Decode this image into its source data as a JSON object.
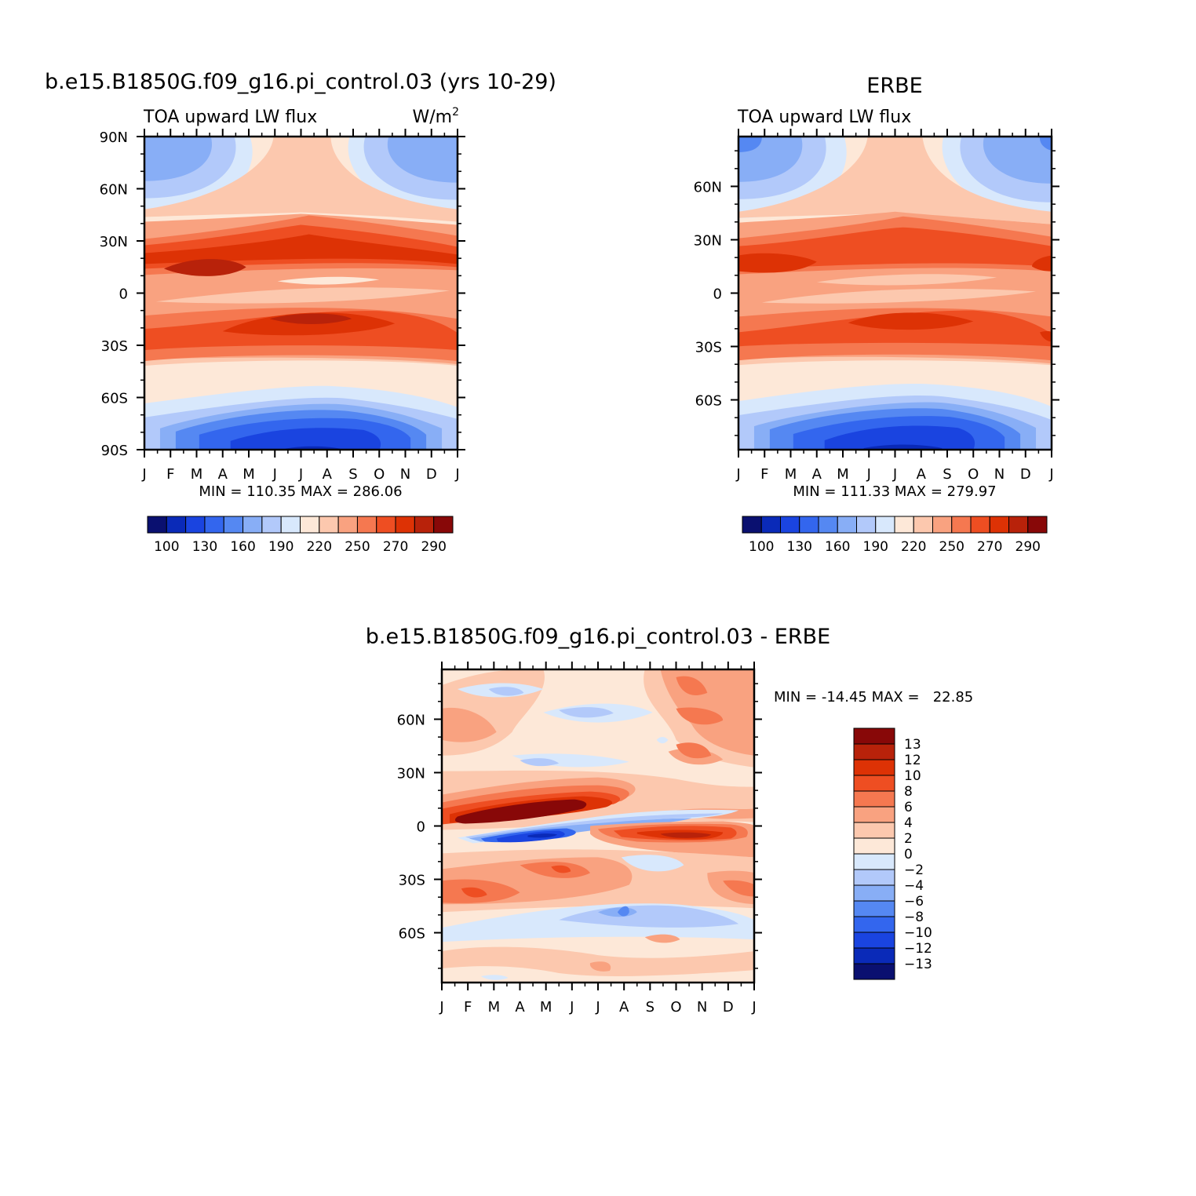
{
  "palette": [
    "#0a1070",
    "#0a2ab8",
    "#1a44e0",
    "#3366ee",
    "#5588f2",
    "#88aef6",
    "#b2c9fa",
    "#d8e8fc",
    "#fde8d8",
    "#fcc8ae",
    "#f9a280",
    "#f57850",
    "#ee4e22",
    "#dd3205",
    "#b8220a",
    "#880808"
  ],
  "chart_data": [
    {
      "id": "model",
      "type": "heatmap",
      "title": "b.e15.B1850G.f09_g16.pi_control.03 (yrs 10-29)",
      "subtitle_left": "TOA upward LW flux",
      "units_base": "W/m",
      "units_sup": "2",
      "xlabel": "",
      "ylabel": "",
      "x_ticks": [
        "J",
        "F",
        "M",
        "A",
        "M",
        "J",
        "J",
        "A",
        "S",
        "O",
        "N",
        "D",
        "J"
      ],
      "y_ticks": [
        {
          "lat": 90,
          "label": "90N"
        },
        {
          "lat": 60,
          "label": "60N"
        },
        {
          "lat": 30,
          "label": "30N"
        },
        {
          "lat": 0,
          "label": "0"
        },
        {
          "lat": -30,
          "label": "30S"
        },
        {
          "lat": -60,
          "label": "60S"
        },
        {
          "lat": -90,
          "label": "90S"
        }
      ],
      "ylim": [
        -90,
        90
      ],
      "stats_text": "MIN = 110.35 MAX = 286.06",
      "min": 110.35,
      "max": 286.06,
      "contour_levels": [
        100,
        110,
        120,
        130,
        140,
        150,
        160,
        170,
        180,
        190,
        200,
        210,
        220,
        230,
        240,
        250,
        260,
        270,
        280,
        290
      ],
      "colorbar_labels": [
        "100",
        "130",
        "160",
        "190",
        "220",
        "250",
        "270",
        "290"
      ]
    },
    {
      "id": "obs",
      "type": "heatmap",
      "title": "ERBE",
      "subtitle_left": "TOA upward LW flux",
      "xlabel": "",
      "ylabel": "",
      "x_ticks": [
        "J",
        "F",
        "M",
        "A",
        "M",
        "J",
        "J",
        "A",
        "S",
        "O",
        "N",
        "D",
        "J"
      ],
      "y_ticks": [
        {
          "lat": 60,
          "label": "60N"
        },
        {
          "lat": 30,
          "label": "30N"
        },
        {
          "lat": 0,
          "label": "0"
        },
        {
          "lat": -30,
          "label": "30S"
        },
        {
          "lat": -60,
          "label": "60S"
        }
      ],
      "ylim": [
        -88,
        88
      ],
      "stats_text": "MIN = 111.33 MAX = 279.97",
      "min": 111.33,
      "max": 279.97,
      "contour_levels": [
        100,
        110,
        120,
        130,
        140,
        150,
        160,
        170,
        180,
        190,
        200,
        210,
        220,
        230,
        240,
        250,
        260,
        270,
        280,
        290
      ],
      "colorbar_labels": [
        "100",
        "130",
        "160",
        "190",
        "220",
        "250",
        "270",
        "290"
      ]
    },
    {
      "id": "diff",
      "type": "heatmap",
      "title": "b.e15.B1850G.f09_g16.pi_control.03 - ERBE",
      "xlabel": "",
      "ylabel": "",
      "x_ticks": [
        "J",
        "F",
        "M",
        "A",
        "M",
        "J",
        "J",
        "A",
        "S",
        "O",
        "N",
        "D",
        "J"
      ],
      "y_ticks": [
        {
          "lat": 60,
          "label": "60N"
        },
        {
          "lat": 30,
          "label": "30N"
        },
        {
          "lat": 0,
          "label": "0"
        },
        {
          "lat": -30,
          "label": "30S"
        },
        {
          "lat": -60,
          "label": "60S"
        }
      ],
      "ylim": [
        -88,
        88
      ],
      "stats_text": "MIN = -14.45 MAX =   22.85",
      "min": -14.45,
      "max": 22.85,
      "contour_levels": [
        -13,
        -12,
        -10,
        -8,
        -6,
        -4,
        -2,
        0,
        2,
        4,
        6,
        8,
        10,
        12,
        13
      ],
      "colorbar_labels": [
        "13",
        "12",
        "10",
        "8",
        "6",
        "4",
        "2",
        "0",
        "-2",
        "-4",
        "-6",
        "-8",
        "-10",
        "-12",
        "-13"
      ]
    }
  ]
}
